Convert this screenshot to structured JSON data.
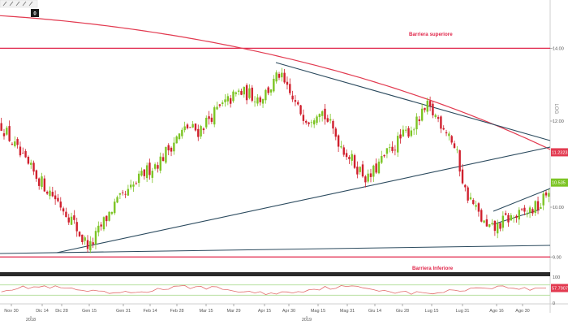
{
  "toolbar": {
    "icons": [
      "pencil-icon",
      "pencil-icon",
      "cursor-icon",
      "line-tool-icon",
      "zoom-icon"
    ],
    "badge": "0"
  },
  "colors": {
    "up": "#7cc424",
    "down": "#d0202e",
    "ma": "#e23a50",
    "trend": "#2b4a5e",
    "barrier": "#e0264a",
    "rsi": "#e26a6a",
    "band": "#b8e0a0"
  },
  "chart_data": [
    {
      "type": "candlestick",
      "y_scale": "log",
      "y_axis_label": "LOG",
      "ylim": [
        8.6,
        15.2
      ],
      "y_ticks": [
        {
          "value": 14.0,
          "label": "14.00"
        },
        {
          "value": 12.0,
          "label": "12.00"
        },
        {
          "value": 10.0,
          "label": "10.00"
        },
        {
          "value": 9.0,
          "label": "9.00"
        }
      ],
      "x_ticks": [
        "Nov 30",
        "Dic 14",
        "Dic 28",
        "Gen 15",
        "Gen 31",
        "Feb 14",
        "Feb 28",
        "Mar 15",
        "Mar 29",
        "Apr 15",
        "Apr 30",
        "Mag 15",
        "Mag 31",
        "Giu 14",
        "Giu 28",
        "Lug 15",
        "Lug 31",
        "Ago 16",
        "Ago 30"
      ],
      "x_year_labels": [
        "2018",
        "2019"
      ],
      "price_labels": [
        {
          "value": 11.2323,
          "label": "11.2323"
        },
        {
          "value": 10.535,
          "label": "10.535"
        }
      ],
      "annotations": [
        {
          "text": "Barriera superiore",
          "value": 14.0
        },
        {
          "text": "Barriera Inferiore",
          "value": 9.0
        }
      ],
      "close_path": [
        [
          0,
          11.9
        ],
        [
          8,
          11.05
        ],
        [
          14,
          10.6
        ],
        [
          20,
          10.2
        ],
        [
          26,
          9.75
        ],
        [
          30,
          9.35
        ],
        [
          33,
          9.2
        ],
        [
          37,
          9.6
        ],
        [
          42,
          10.05
        ],
        [
          47,
          10.3
        ],
        [
          53,
          10.75
        ],
        [
          59,
          11.05
        ],
        [
          64,
          11.5
        ],
        [
          69,
          11.85
        ],
        [
          73,
          11.75
        ],
        [
          78,
          12.15
        ],
        [
          83,
          12.45
        ],
        [
          88,
          12.75
        ],
        [
          92,
          12.7
        ],
        [
          96,
          12.6
        ],
        [
          100,
          12.9
        ],
        [
          103,
          13.25
        ],
        [
          106,
          12.8
        ],
        [
          110,
          12.3
        ],
        [
          114,
          12.05
        ],
        [
          118,
          12.35
        ],
        [
          121,
          12.0
        ],
        [
          126,
          11.4
        ],
        [
          131,
          10.95
        ],
        [
          136,
          10.6
        ],
        [
          140,
          10.95
        ],
        [
          145,
          11.35
        ],
        [
          150,
          11.7
        ],
        [
          154,
          11.95
        ],
        [
          158,
          12.35
        ],
        [
          162,
          12.05
        ],
        [
          166,
          11.7
        ],
        [
          169,
          11.15
        ],
        [
          172,
          10.35
        ],
        [
          176,
          9.95
        ],
        [
          180,
          9.55
        ],
        [
          183,
          9.55
        ],
        [
          187,
          9.75
        ],
        [
          191,
          9.8
        ],
        [
          195,
          9.9
        ],
        [
          200,
          10.05
        ],
        [
          203,
          10.4
        ]
      ]
    },
    {
      "type": "line",
      "name": "RSI",
      "ylim": [
        0,
        100
      ],
      "y_ticks": [
        {
          "value": 100,
          "label": "100"
        },
        {
          "value": 0,
          "label": "0"
        }
      ],
      "band": [
        30,
        70
      ],
      "current": {
        "value": 57.7907,
        "label": "57.7907"
      }
    }
  ]
}
